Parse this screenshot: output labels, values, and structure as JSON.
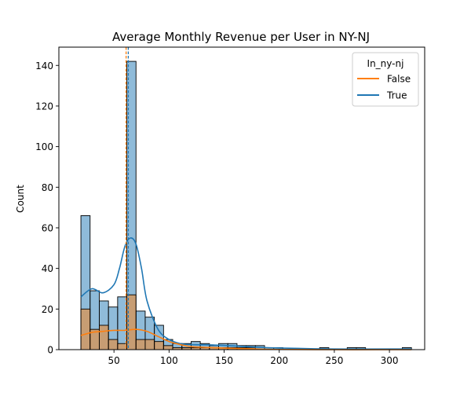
{
  "chart_data": {
    "type": "bar",
    "title": "Average Monthly Revenue per User in NY-NJ",
    "xlabel": "",
    "ylabel": "Count",
    "xlim": [
      -0.0,
      332.0
    ],
    "ylim": [
      0,
      149
    ],
    "xticks": [
      50,
      100,
      150,
      200,
      250,
      300
    ],
    "yticks": [
      0,
      20,
      40,
      60,
      80,
      100,
      120,
      140
    ],
    "bin_edges": [
      20,
      28.33,
      36.67,
      45,
      53.33,
      61.67,
      70,
      78.33,
      86.67,
      95,
      103.33,
      111.67,
      120,
      128.33,
      136.67,
      145,
      153.33,
      161.67,
      170,
      178.33,
      186.67,
      195,
      203.33,
      211.67,
      220,
      228.33,
      236.67,
      245,
      253.33,
      261.67,
      270,
      278.33,
      286.67,
      295,
      303.33,
      311.67,
      320
    ],
    "legend": {
      "title": "In_ny-nj",
      "placement": "top-right",
      "entries": [
        {
          "label": "False",
          "color": "#ff7f0e"
        },
        {
          "label": "True",
          "color": "#1f77b4"
        }
      ]
    },
    "series": [
      {
        "name": "True",
        "color": "#1f77b4",
        "counts": [
          66,
          29,
          24,
          21,
          26,
          142,
          19,
          16,
          12,
          5,
          3,
          3,
          4,
          3,
          2,
          3,
          3,
          2,
          2,
          2,
          1,
          1,
          0,
          0,
          0,
          0,
          1,
          0,
          0,
          1,
          1,
          0,
          0,
          0,
          0,
          1
        ],
        "kde_x": [
          20,
          30,
          40,
          50,
          55,
          60,
          65,
          70,
          75,
          80,
          90,
          100,
          110,
          120,
          140,
          160,
          180,
          200,
          250,
          300,
          320
        ],
        "kde_y": [
          26,
          30,
          28,
          32,
          40,
          51,
          55,
          52,
          40,
          24,
          10,
          5,
          3,
          2.5,
          2.3,
          1.8,
          1.2,
          0.8,
          0.3,
          0.3,
          0.3
        ],
        "mean": 63
      },
      {
        "name": "False",
        "color": "#ff7f0e",
        "counts": [
          20,
          10,
          12,
          5,
          3,
          27,
          5,
          5,
          4,
          2,
          1,
          1,
          1,
          1,
          1,
          1,
          1,
          1,
          1,
          0,
          0,
          0,
          0,
          0,
          0,
          0,
          0,
          0,
          0,
          0,
          0,
          0,
          0,
          0,
          0,
          0
        ],
        "kde_x": [
          20,
          30,
          40,
          50,
          60,
          70,
          80,
          90,
          100,
          110,
          120,
          140,
          160,
          180,
          200,
          250,
          300,
          320
        ],
        "kde_y": [
          7,
          8.5,
          9,
          9.5,
          9.5,
          10,
          9,
          6.5,
          4,
          2.5,
          1.5,
          1,
          0.6,
          0.3,
          0.1,
          0,
          0,
          0
        ],
        "mean": 61
      }
    ]
  }
}
